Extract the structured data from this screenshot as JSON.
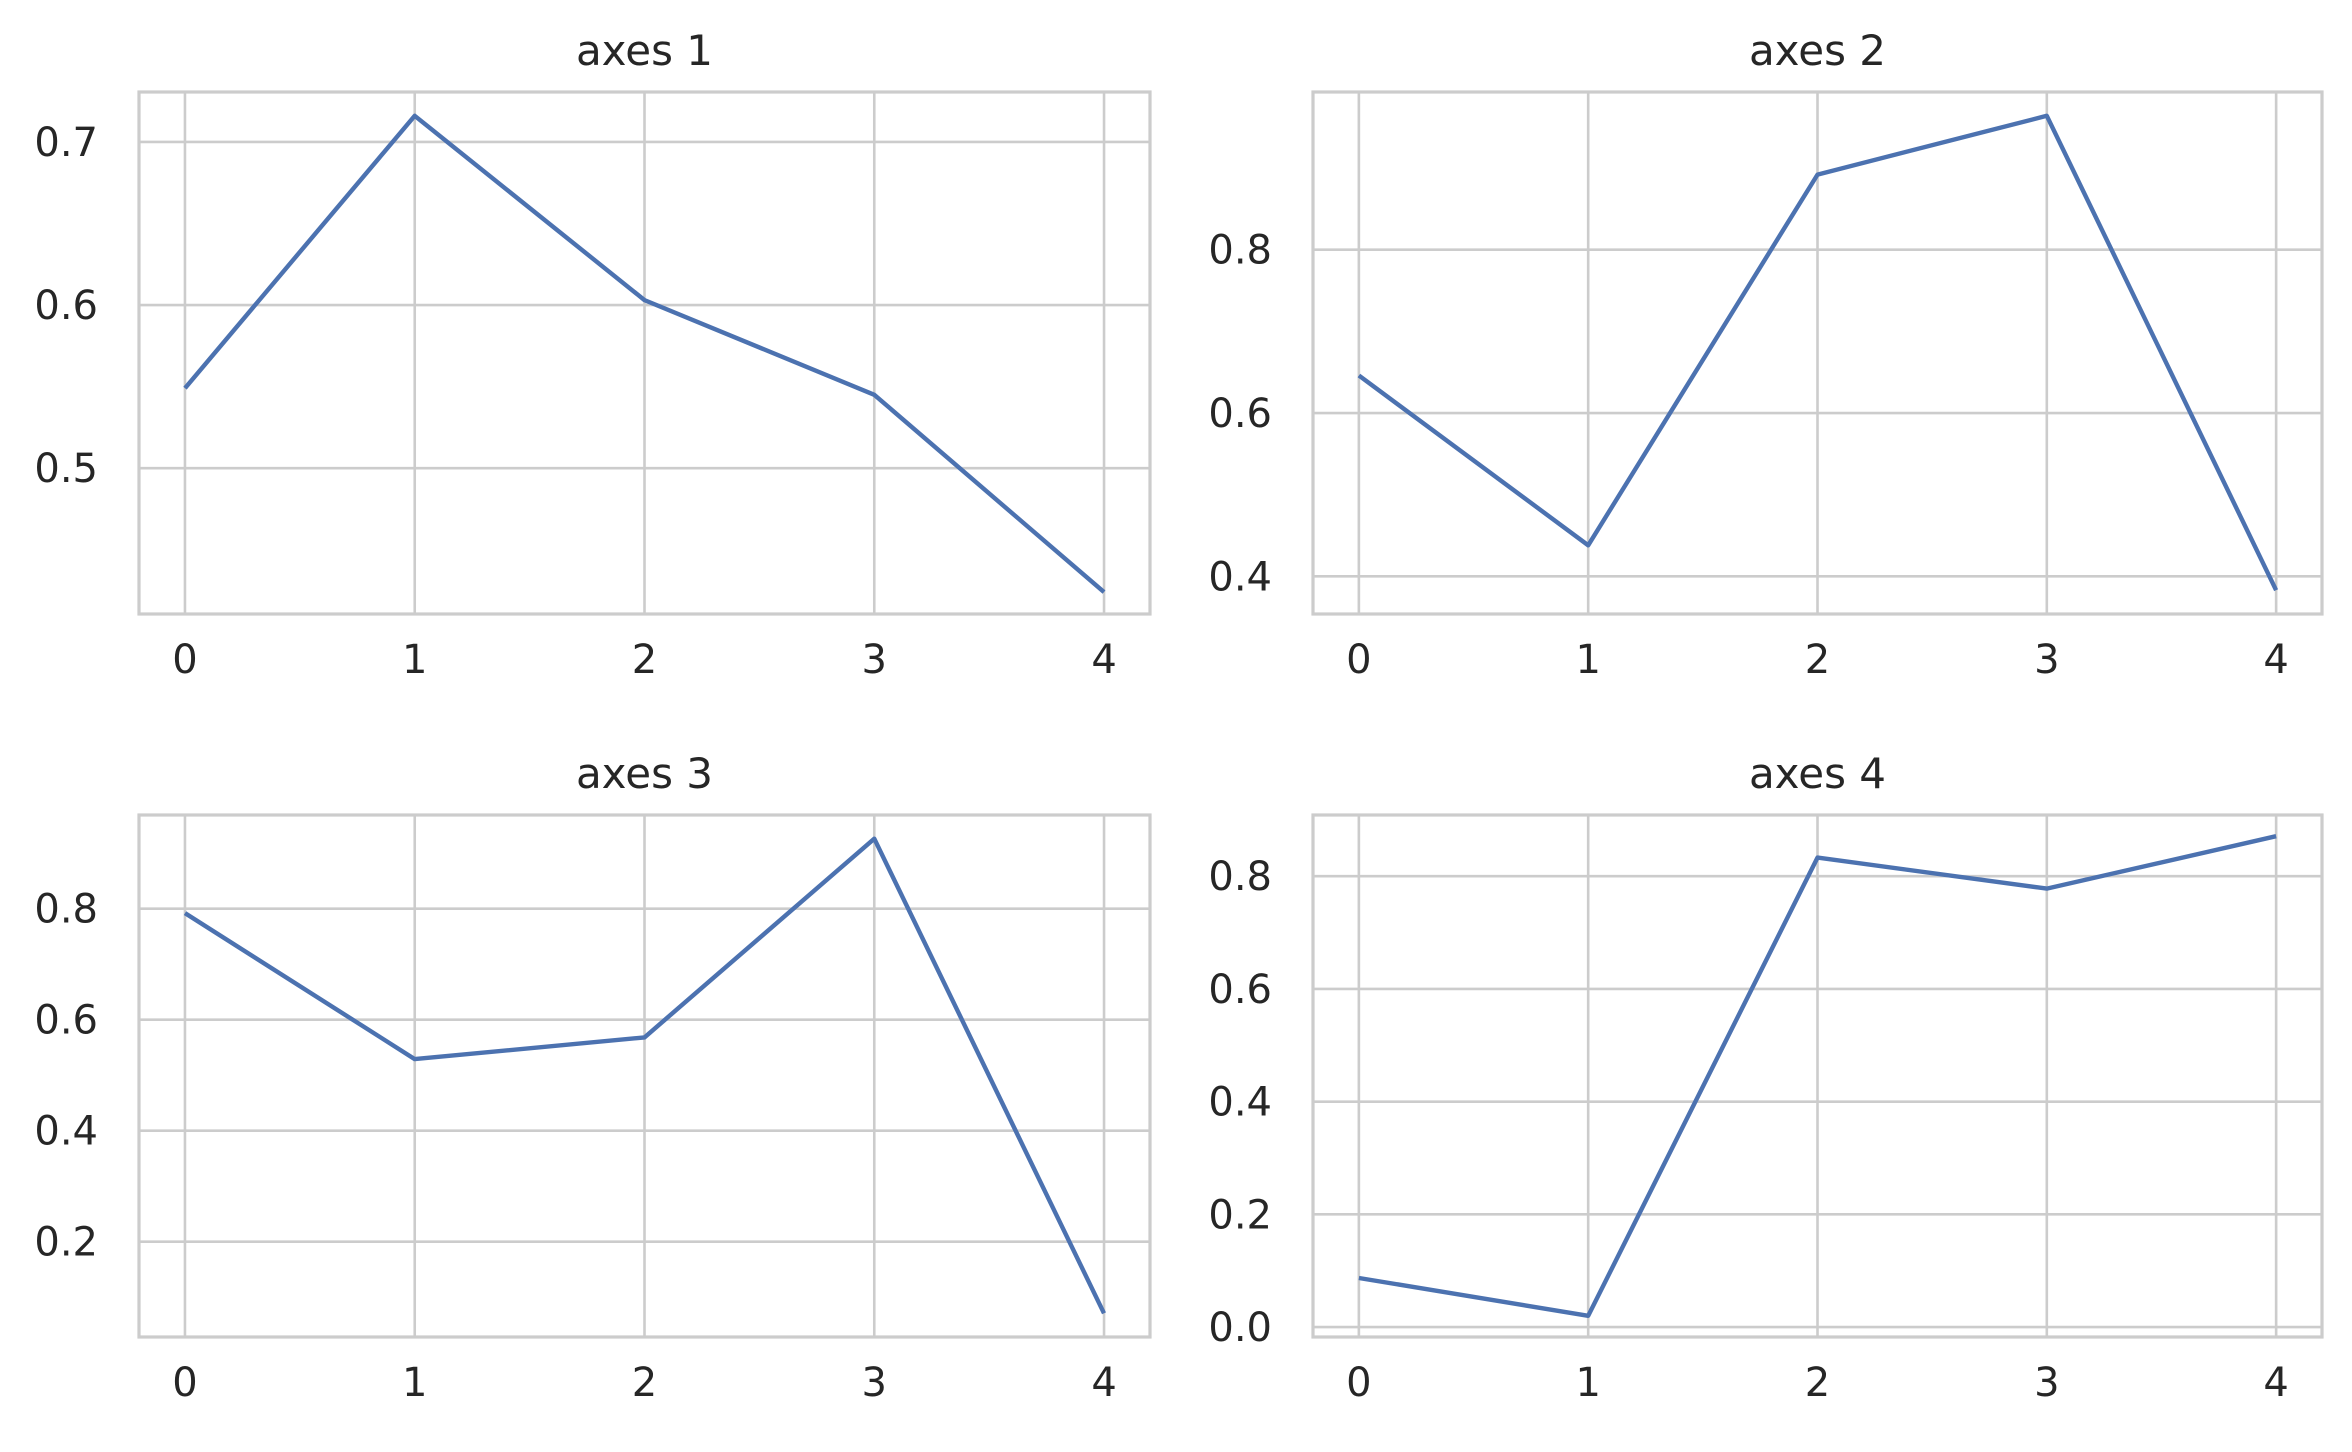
{
  "series_color": "#4c72b0",
  "chart_data": [
    {
      "type": "line",
      "title": "axes 1",
      "x": [
        0,
        1,
        2,
        3,
        4
      ],
      "series": [
        {
          "values": [
            0.549,
            0.716,
            0.603,
            0.545,
            0.424
          ]
        }
      ],
      "xlim": [
        -0.2,
        4.2
      ],
      "ylim": [
        0.4106,
        0.7306
      ],
      "xticks": [
        0,
        1,
        2,
        3,
        4
      ],
      "xtick_labels": [
        "0",
        "1",
        "2",
        "3",
        "4"
      ],
      "yticks": [
        0.5,
        0.6,
        0.7
      ],
      "ytick_labels": [
        "0.5",
        "0.6",
        "0.7"
      ],
      "grid": true
    },
    {
      "type": "line",
      "title": "axes 2",
      "x": [
        0,
        1,
        2,
        3,
        4
      ],
      "series": [
        {
          "values": [
            0.646,
            0.438,
            0.892,
            0.964,
            0.383
          ]
        }
      ],
      "xlim": [
        -0.2,
        4.2
      ],
      "ylim": [
        0.3539,
        0.9931
      ],
      "xticks": [
        0,
        1,
        2,
        3,
        4
      ],
      "xtick_labels": [
        "0",
        "1",
        "2",
        "3",
        "4"
      ],
      "yticks": [
        0.4,
        0.6,
        0.8
      ],
      "ytick_labels": [
        "0.4",
        "0.6",
        "0.8"
      ],
      "grid": true
    },
    {
      "type": "line",
      "title": "axes 3",
      "x": [
        0,
        1,
        2,
        3,
        4
      ],
      "series": [
        {
          "values": [
            0.792,
            0.529,
            0.568,
            0.926,
            0.071
          ]
        }
      ],
      "xlim": [
        -0.2,
        4.2
      ],
      "ylim": [
        0.0283,
        0.9687
      ],
      "xticks": [
        0,
        1,
        2,
        3,
        4
      ],
      "xtick_labels": [
        "0",
        "1",
        "2",
        "3",
        "4"
      ],
      "yticks": [
        0.2,
        0.4,
        0.6,
        0.8
      ],
      "ytick_labels": [
        "0.2",
        "0.4",
        "0.6",
        "0.8"
      ],
      "grid": true
    },
    {
      "type": "line",
      "title": "axes 4",
      "x": [
        0,
        1,
        2,
        3,
        4
      ],
      "series": [
        {
          "values": [
            0.087,
            0.02,
            0.833,
            0.778,
            0.871
          ]
        }
      ],
      "xlim": [
        -0.2,
        4.2
      ],
      "ylim": [
        -0.0176,
        0.9086
      ],
      "xticks": [
        0,
        1,
        2,
        3,
        4
      ],
      "xtick_labels": [
        "0",
        "1",
        "2",
        "3",
        "4"
      ],
      "yticks": [
        0.0,
        0.2,
        0.4,
        0.6,
        0.8
      ],
      "ytick_labels": [
        "0.0",
        "0.2",
        "0.4",
        "0.6",
        "0.8"
      ],
      "grid": true
    }
  ]
}
